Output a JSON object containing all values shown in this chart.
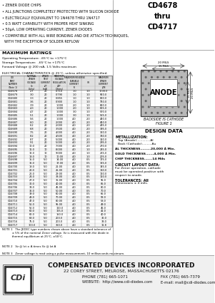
{
  "title_part": "CD4678\nthru\nCD4717",
  "bullets": [
    "• ZENER DIODE CHIPS",
    "• ALL JUNCTIONS COMPLETELY PROTECTED WITH SILICON DIOXIDE",
    "• ELECTRICALLY EQUIVALENT TO 1N4678 THRU 1N4717",
    "• 0.5 WATT CAPABILITY WITH PROPER HEAT SINKING",
    "• 50μA, LOW OPERATING CURRENT, ZENER DIODES",
    "• COMPATIBLE WITH ALL WIRE BONDING AND DIE ATTACH TECHNIQUES,",
    "  WITH THE EXCEPTION OF SOLDER REFLOW"
  ],
  "max_ratings_title": "MAXIMUM RATINGS",
  "max_ratings": [
    "Operating Temperature: -65°C to +175°C",
    "Storage Temperature:  -65°C to +175°C",
    "Forward Voltage @ 200 mA, 1.5 Volts maximum"
  ],
  "elec_char_title": "ELECTRICAL CHARACTERISTICS @ 25°C, unless otherwise specified.",
  "table_data": [
    [
      "CD4678",
      "2.7",
      "20",
      "0.710",
      "1.0",
      "1.0",
      "1000.0"
    ],
    [
      "CD4679",
      "3.0",
      "20",
      "0.790",
      "1.0",
      "1.0",
      "900.0"
    ],
    [
      "CD4680",
      "3.3",
      "20",
      "0.855",
      "1.0",
      "1.0",
      "820.0"
    ],
    [
      "CD4681",
      "3.6",
      "20",
      "0.900",
      "1.0",
      "1.0",
      "750.0"
    ],
    [
      "CD4682",
      "3.9",
      "20",
      "1.000",
      "2.0",
      "1.0",
      "690.0"
    ],
    [
      "CD4683",
      "4.3",
      "20",
      "1.000",
      "2.0",
      "1.0",
      "625.0"
    ],
    [
      "CD4684",
      "4.7",
      "20",
      "1.000",
      "3.0",
      "1.0",
      "570.0"
    ],
    [
      "CD4685",
      "5.1",
      "20",
      "1.000",
      "3.0",
      "1.0",
      "525.0"
    ],
    [
      "CD4686",
      "5.6",
      "20",
      "1.000",
      "4.0",
      "2.0",
      "480.0"
    ],
    [
      "CD4687",
      "6.0",
      "20",
      "2.000",
      "4.0",
      "2.0",
      "450.0"
    ],
    [
      "CD4688",
      "6.2",
      "20",
      "2.000",
      "4.0",
      "2.0",
      "435.0"
    ],
    [
      "CD4689",
      "6.8",
      "20",
      "3.500",
      "4.0",
      "2.0",
      "395.0"
    ],
    [
      "CD4690",
      "7.5",
      "20",
      "4.000",
      "4.0",
      "2.0",
      "360.0"
    ],
    [
      "CD4691",
      "8.2",
      "20",
      "4.500",
      "4.0",
      "2.0",
      "330.0"
    ],
    [
      "CD4692",
      "8.7",
      "20",
      "5.000",
      "4.0",
      "2.0",
      "310.0"
    ],
    [
      "CD4693",
      "9.1",
      "20",
      "5.000",
      "4.0",
      "2.0",
      "295.0"
    ],
    [
      "CD4694",
      "10.0",
      "20",
      "7.000",
      "4.0",
      "2.0",
      "270.0"
    ],
    [
      "CD4695",
      "11.0",
      "10",
      "8.000",
      "4.0",
      "1.0",
      "245.0"
    ],
    [
      "CD4696",
      "12.0",
      "10",
      "9.000",
      "4.0",
      "1.0",
      "225.0"
    ],
    [
      "CD4697",
      "13.0",
      "10",
      "10.00",
      "4.0",
      "1.0",
      "205.0"
    ],
    [
      "CD4698",
      "15.0",
      "5.0",
      "14.00",
      "4.0",
      "0.5",
      "175.0"
    ],
    [
      "CD4699",
      "16.0",
      "5.0",
      "17.00",
      "4.0",
      "0.5",
      "165.0"
    ],
    [
      "CD4700",
      "18.0",
      "5.0",
      "21.00",
      "4.0",
      "0.5",
      "145.0"
    ],
    [
      "CD4701",
      "20.0",
      "5.0",
      "25.00",
      "4.0",
      "0.5",
      "130.0"
    ],
    [
      "CD4702",
      "22.0",
      "5.0",
      "29.00",
      "4.0",
      "0.5",
      "120.0"
    ],
    [
      "CD4703",
      "24.0",
      "5.0",
      "33.00",
      "4.0",
      "0.5",
      "110.0"
    ],
    [
      "CD4704",
      "27.0",
      "5.0",
      "35.00",
      "4.0",
      "0.5",
      "95.0"
    ],
    [
      "CD4705",
      "30.0",
      "5.0",
      "40.00",
      "4.0",
      "0.5",
      "85.0"
    ],
    [
      "CD4706",
      "33.0",
      "5.0",
      "45.00",
      "4.0",
      "0.5",
      "80.0"
    ],
    [
      "CD4707",
      "36.0",
      "5.0",
      "50.00",
      "4.0",
      "0.5",
      "70.0"
    ],
    [
      "CD4708",
      "39.0",
      "5.0",
      "60.00",
      "4.0",
      "0.5",
      "65.0"
    ],
    [
      "CD4709",
      "43.0",
      "5.0",
      "70.00",
      "4.0",
      "0.5",
      "58.0"
    ],
    [
      "CD4710",
      "47.0",
      "5.0",
      "80.00",
      "4.0",
      "0.5",
      "53.0"
    ],
    [
      "CD4711",
      "51.0",
      "5.0",
      "95.00",
      "4.0",
      "0.5",
      "49.0"
    ],
    [
      "CD4712",
      "56.0",
      "5.0",
      "110.0",
      "4.0",
      "0.5",
      "45.0"
    ],
    [
      "CD4713",
      "60.0",
      "5.0",
      "125.0",
      "4.0",
      "0.5",
      "41.0"
    ],
    [
      "CD4714",
      "62.0",
      "5.0",
      "150.0",
      "4.0",
      "0.5",
      "40.0"
    ],
    [
      "CD4715",
      "68.0",
      "5.0",
      "200.0",
      "4.0",
      "0.5",
      "36.0"
    ],
    [
      "CD4716",
      "75.0",
      "5.0",
      "200.0",
      "4.0",
      "0.5",
      "33.0"
    ],
    [
      "CD4717",
      "100.0",
      "5.0",
      "350.0",
      "4.0",
      "0.5",
      "11.8"
    ]
  ],
  "notes": [
    "NOTE 1   The JEDEC type numbers shown above have a standard tolerance of\n           ± 5% of the nominal Zener voltage. Vz is measured with the diode in\n           thermal equilibrium at 25°C, ±50°C.",
    "NOTE 2   Vz @ Izt ± A times Vz @ Izt A",
    "NOTE 3   Zener voltage is read using a pulse measurement, 10 milliseconds maximum."
  ],
  "design_title": "DESIGN DATA",
  "metallization_title": "METALLIZATION:",
  "metallization_lines": [
    "   Top (Anode)..............Al",
    "   Back (Cathode)..........Au"
  ],
  "al_thickness": "AL THICKNESS.........20,000 Å Min.",
  "gold_thickness": "GOLD THICKNESS.......4,000 Å Min.",
  "chip_thickness": "CHIP THICKNESS.......14 Mils",
  "circuit_layout_title": "CIRCUIT LAYOUT DATA:",
  "circuit_layout_lines": [
    "For Zener operation, cathode",
    "must be operated positive with",
    "respect to anode."
  ],
  "tolerances_title": "TOLERANCES: All",
  "tolerances_lines": [
    "Dimensions ± 4 mils."
  ],
  "figure_label1": "BACKSIDE IS CATHODE",
  "figure_label2": "FIGURE 1",
  "company_name": "COMPENSATED DEVICES INCORPORATED",
  "company_address": "22 COREY STREET, MELROSE, MASSACHUSETTS 02176",
  "company_phone_left": "PHONE (781) 665-1071",
  "company_phone_right": "FAX (781) 665-7379",
  "company_web_left": "WEBSITE:  http://www.cdi-diodes.com",
  "company_web_right": "E-mail: mail@cdi-diodes.com",
  "white": "#ffffff",
  "black": "#000000",
  "light_gray": "#e8e8e8",
  "mid_gray": "#aaaaaa",
  "dark_gray": "#444444"
}
